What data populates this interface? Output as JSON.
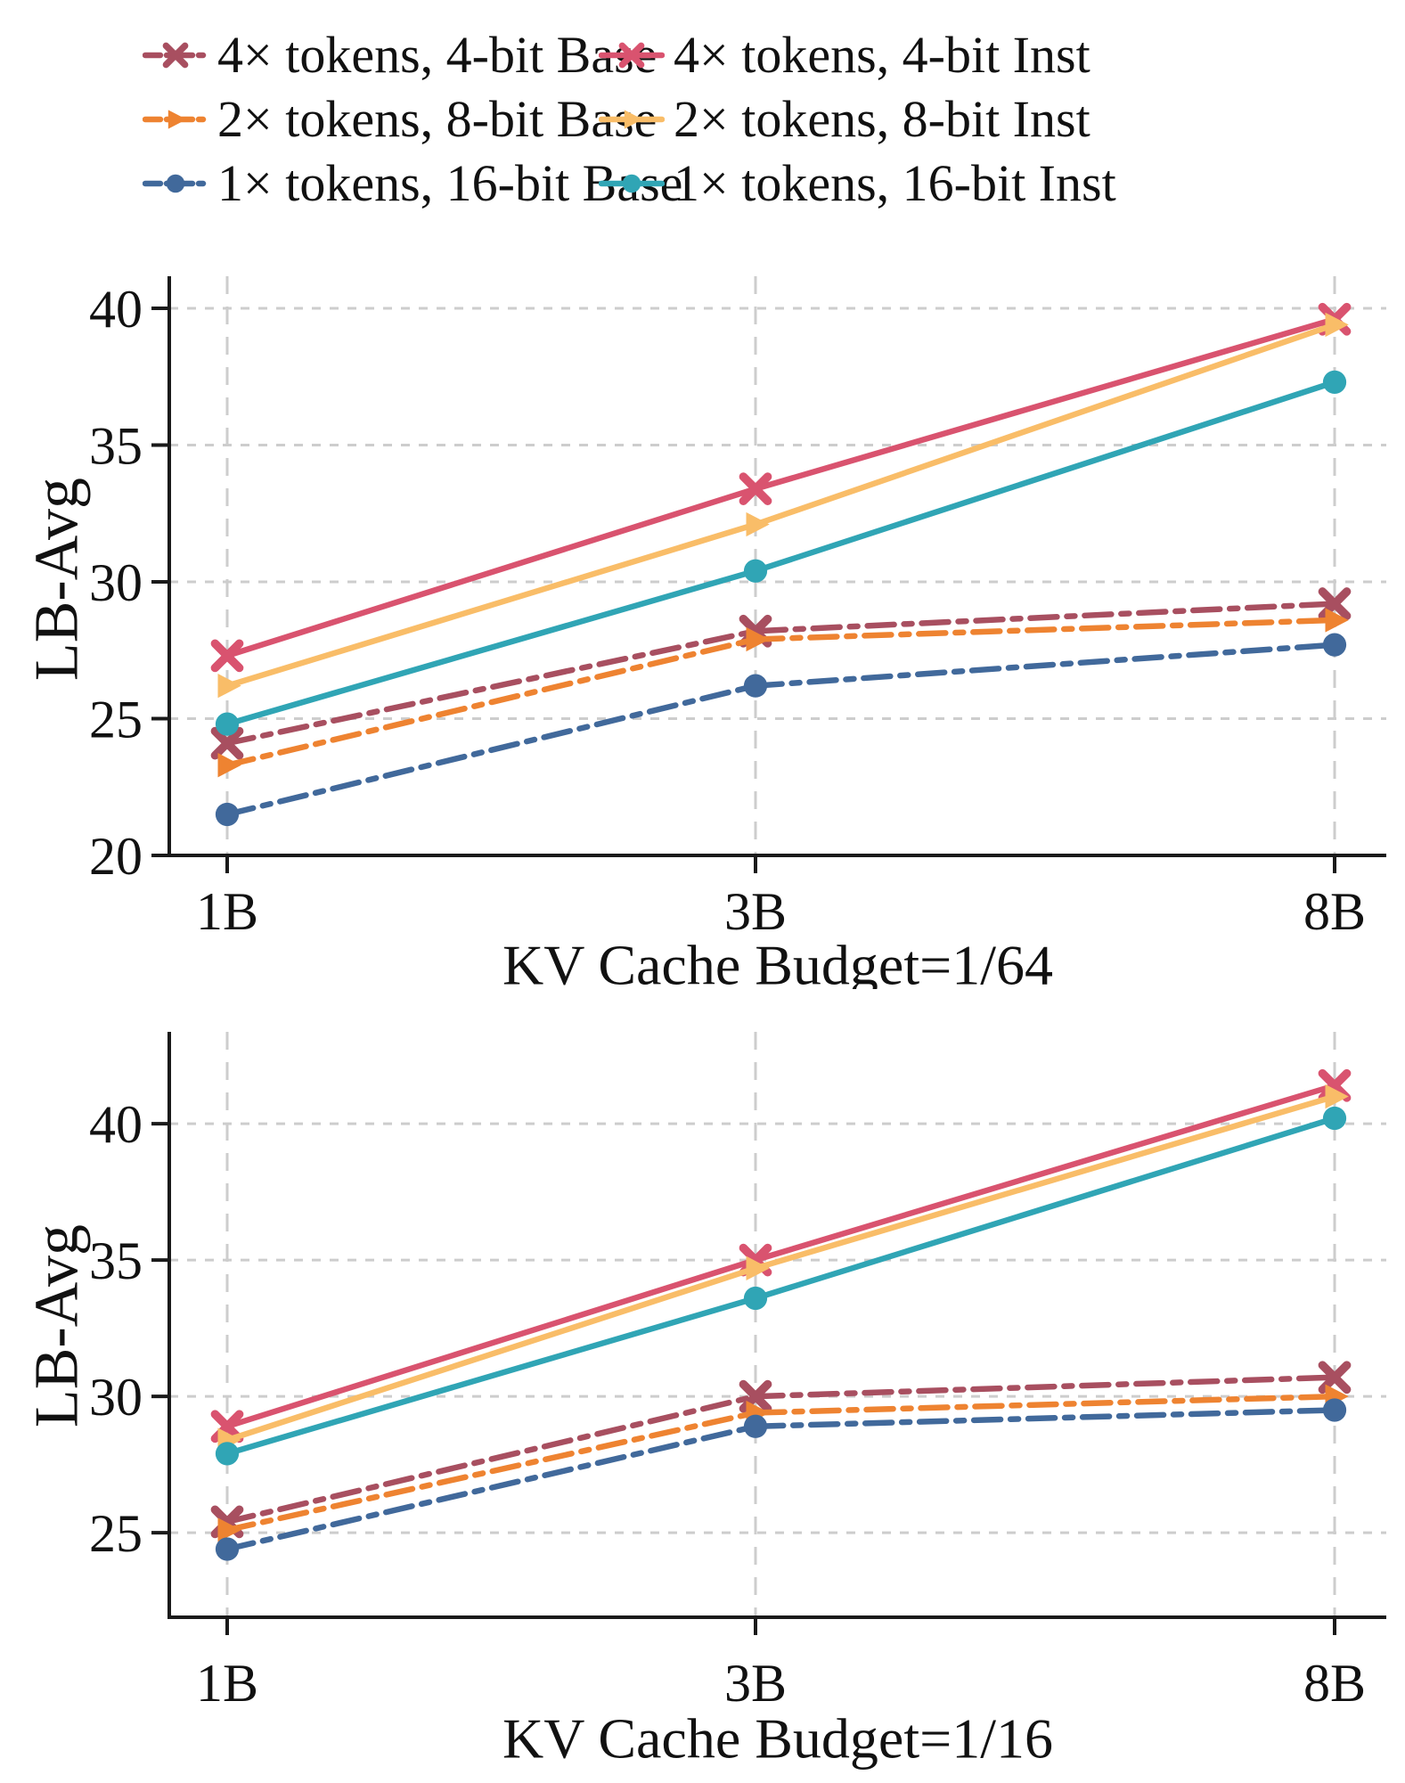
{
  "figure": {
    "background": "#ffffff",
    "text_color": "#111111",
    "grid_color": "#cdcdcd",
    "spine_color": "#1a1a1a"
  },
  "legend": {
    "rows": [
      [
        {
          "series": "base4",
          "label": "4× tokens, 4-bit Base"
        },
        {
          "series": "inst4",
          "label": "4× tokens, 4-bit Inst"
        }
      ],
      [
        {
          "series": "base8",
          "label": "2× tokens, 8-bit Base"
        },
        {
          "series": "inst8",
          "label": "2× tokens, 8-bit Inst"
        }
      ],
      [
        {
          "series": "base16",
          "label": "1× tokens, 16-bit Base"
        },
        {
          "series": "inst16",
          "label": "1× tokens, 16-bit Inst"
        }
      ]
    ]
  },
  "series_styles": {
    "base4": {
      "color": "#a84f60",
      "marker": "x",
      "linestyle": "dashdot"
    },
    "inst4": {
      "color": "#d9536f",
      "marker": "x",
      "linestyle": "solid"
    },
    "base8": {
      "color": "#ee8331",
      "marker": "triangle",
      "linestyle": "dashdot"
    },
    "inst8": {
      "color": "#f9bd68",
      "marker": "triangle",
      "linestyle": "solid"
    },
    "base16": {
      "color": "#41699b",
      "marker": "circle",
      "linestyle": "dashdot"
    },
    "inst16": {
      "color": "#30a5b5",
      "marker": "circle",
      "linestyle": "solid"
    }
  },
  "chart_data": [
    {
      "type": "line",
      "title": "KV Cache Budget=1/64",
      "xlabel": "",
      "ylabel": "LB-Avg",
      "categories": [
        "1B",
        "3B",
        "8B"
      ],
      "yticks": [
        20,
        25,
        30,
        35,
        40
      ],
      "ylim": [
        20,
        41.3
      ],
      "grid": true,
      "legend_position": "above-figure",
      "series": [
        {
          "key": "base4",
          "name": "4× tokens, 4-bit Base",
          "values": [
            24.1,
            28.2,
            29.2
          ]
        },
        {
          "key": "inst4",
          "name": "4× tokens, 4-bit Inst",
          "values": [
            27.3,
            33.4,
            39.6
          ]
        },
        {
          "key": "base8",
          "name": "2× tokens, 8-bit Base",
          "values": [
            23.3,
            27.9,
            28.6
          ]
        },
        {
          "key": "inst8",
          "name": "2× tokens, 8-bit Inst",
          "values": [
            26.2,
            32.1,
            39.4
          ]
        },
        {
          "key": "base16",
          "name": "1× tokens, 16-bit Base",
          "values": [
            21.5,
            26.2,
            27.7
          ]
        },
        {
          "key": "inst16",
          "name": "1× tokens, 16-bit Inst",
          "values": [
            24.8,
            30.4,
            37.3
          ]
        }
      ]
    },
    {
      "type": "line",
      "title": "KV Cache Budget=1/16",
      "xlabel": "",
      "ylabel": "LB-Avg",
      "categories": [
        "1B",
        "3B",
        "8B"
      ],
      "yticks": [
        25,
        30,
        35,
        40
      ],
      "ylim": [
        21.9,
        43.4
      ],
      "grid": true,
      "legend_position": "above-figure",
      "series": [
        {
          "key": "base4",
          "name": "4× tokens, 4-bit Base",
          "values": [
            25.4,
            30.0,
            30.7
          ]
        },
        {
          "key": "inst4",
          "name": "4× tokens, 4-bit Inst",
          "values": [
            28.9,
            35.0,
            41.4
          ]
        },
        {
          "key": "base8",
          "name": "2× tokens, 8-bit Base",
          "values": [
            25.1,
            29.4,
            30.0
          ]
        },
        {
          "key": "inst8",
          "name": "2× tokens, 8-bit Inst",
          "values": [
            28.4,
            34.7,
            41.0
          ]
        },
        {
          "key": "base16",
          "name": "1× tokens, 16-bit Base",
          "values": [
            24.4,
            28.9,
            29.5
          ]
        },
        {
          "key": "inst16",
          "name": "1× tokens, 16-bit Inst",
          "values": [
            27.9,
            33.6,
            40.2
          ]
        }
      ]
    }
  ]
}
